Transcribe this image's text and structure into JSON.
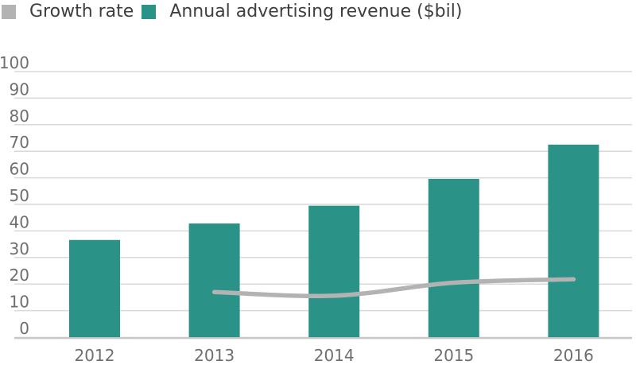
{
  "legend": {
    "items": [
      {
        "label": "Growth rate",
        "color": "#b3b3b3",
        "series_type": "line"
      },
      {
        "label": "Annual advertising revenue ($bil)",
        "color": "#2a9286",
        "series_type": "bar"
      }
    ]
  },
  "chart_data": {
    "type": "bar",
    "subtype": "combo-bar-line",
    "title": "",
    "xlabel": "",
    "ylabel": "",
    "categories": [
      "2012",
      "2013",
      "2014",
      "2015",
      "2016"
    ],
    "series": [
      {
        "name": "Annual advertising revenue ($bil)",
        "type": "bar",
        "color": "#2a9286",
        "values": [
          36.6,
          42.8,
          49.5,
          59.6,
          72.5
        ]
      },
      {
        "name": "Growth rate",
        "type": "line",
        "color": "#b3b3b3",
        "values": [
          null,
          17.0,
          15.6,
          20.5,
          21.8
        ]
      }
    ],
    "ylim": [
      0,
      100
    ],
    "yticks": [
      0,
      10,
      20,
      30,
      40,
      50,
      60,
      70,
      80,
      90,
      100
    ],
    "grid": true,
    "legend_position": "top-left"
  },
  "colors": {
    "bar": "#2a9286",
    "line": "#b3b3b3",
    "grid": "#d9d9d9",
    "axis": "#c6c6c6",
    "tick_text": "#6f6f6f",
    "legend_text": "#3f3f3f",
    "background": "#ffffff"
  }
}
